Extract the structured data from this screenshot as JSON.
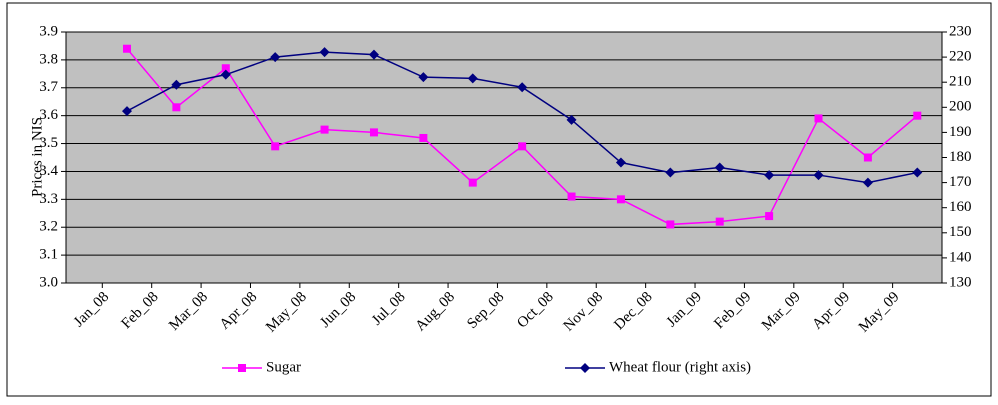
{
  "chart_data": {
    "type": "line",
    "y_label": "Prices in NIS",
    "categories": [
      "Jan_08",
      "Feb_08",
      "Mar_08",
      "Apr_08",
      "May_08",
      "Jun_08",
      "Jul_08",
      "Aug_08",
      "Sep_08",
      "Oct_08",
      "Nov_08",
      "Dec_08",
      "Jan_09",
      "Feb_09",
      "Mar_09",
      "Apr_09",
      "May_09"
    ],
    "series": [
      {
        "name": "Sugar",
        "color": "#ff00ff",
        "marker": "square",
        "values": [
          3.84,
          3.63,
          3.77,
          3.49,
          3.55,
          3.54,
          3.52,
          3.36,
          3.49,
          3.31,
          3.3,
          3.21,
          3.22,
          3.24,
          3.59,
          3.45,
          3.6
        ]
      },
      {
        "name": "Wheat flour (right axis)",
        "color": "#000080",
        "marker": "diamond",
        "axis": "y2",
        "values": [
          198.5,
          209,
          213,
          220,
          222,
          221,
          212,
          211.5,
          208,
          195,
          178,
          174,
          176,
          173,
          173,
          170,
          174
        ]
      }
    ],
    "ylim": [
      3.0,
      3.9
    ],
    "yticks": [
      {
        "value": 3,
        "label": "3.0"
      },
      3.1,
      3.2,
      3.3,
      3.4,
      3.5,
      3.6,
      3.7,
      3.8,
      3.9
    ],
    "y2lim": [
      130,
      230
    ],
    "y2ticks": [
      130,
      140,
      150,
      160,
      170,
      180,
      190,
      200,
      210,
      220,
      230
    ],
    "grid": true,
    "legend": "bottom"
  }
}
